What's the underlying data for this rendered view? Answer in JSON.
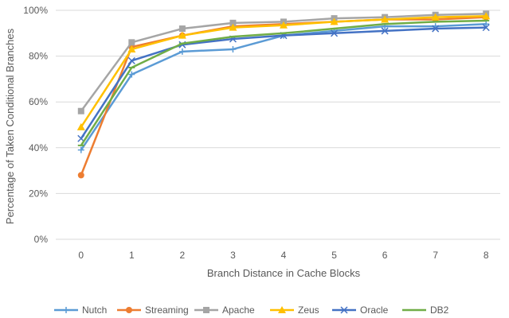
{
  "chart_data": {
    "type": "line",
    "title": "",
    "xlabel": "Branch Distance in Cache Blocks",
    "ylabel": "Percentage of Taken Conditional Branches",
    "categories": [
      "0",
      "1",
      "2",
      "3",
      "4",
      "5",
      "6",
      "7",
      "8"
    ],
    "y_ticks": [
      "0%",
      "20%",
      "40%",
      "60%",
      "80%",
      "100%"
    ],
    "ylim": [
      0,
      100
    ],
    "y_unit": "%",
    "grid": "horizontal",
    "legend_position": "bottom",
    "series": [
      {
        "name": "Nutch",
        "color": "#5b9bd5",
        "marker": "plus",
        "values": [
          39,
          72,
          82,
          83,
          89,
          91,
          93,
          93,
          94
        ]
      },
      {
        "name": "Streaming",
        "color": "#ed7d31",
        "marker": "circle",
        "values": [
          28,
          84,
          89,
          93,
          94,
          95,
          96,
          96,
          97
        ]
      },
      {
        "name": "Apache",
        "color": "#a5a5a5",
        "marker": "square",
        "values": [
          56,
          86,
          92,
          94.5,
          95,
          96.5,
          97,
          98,
          98.5
        ]
      },
      {
        "name": "Zeus",
        "color": "#ffc000",
        "marker": "triangle",
        "values": [
          49,
          83,
          89,
          92.5,
          93.5,
          95,
          96,
          97,
          97.5
        ]
      },
      {
        "name": "Oracle",
        "color": "#4472c4",
        "marker": "x",
        "values": [
          44,
          78,
          85,
          87.5,
          89,
          90,
          91,
          92,
          92.5
        ]
      },
      {
        "name": "DB2",
        "color": "#70ad47",
        "marker": "dash",
        "values": [
          41,
          75,
          85.5,
          88.5,
          90,
          92,
          94,
          95,
          95.5
        ]
      }
    ]
  }
}
